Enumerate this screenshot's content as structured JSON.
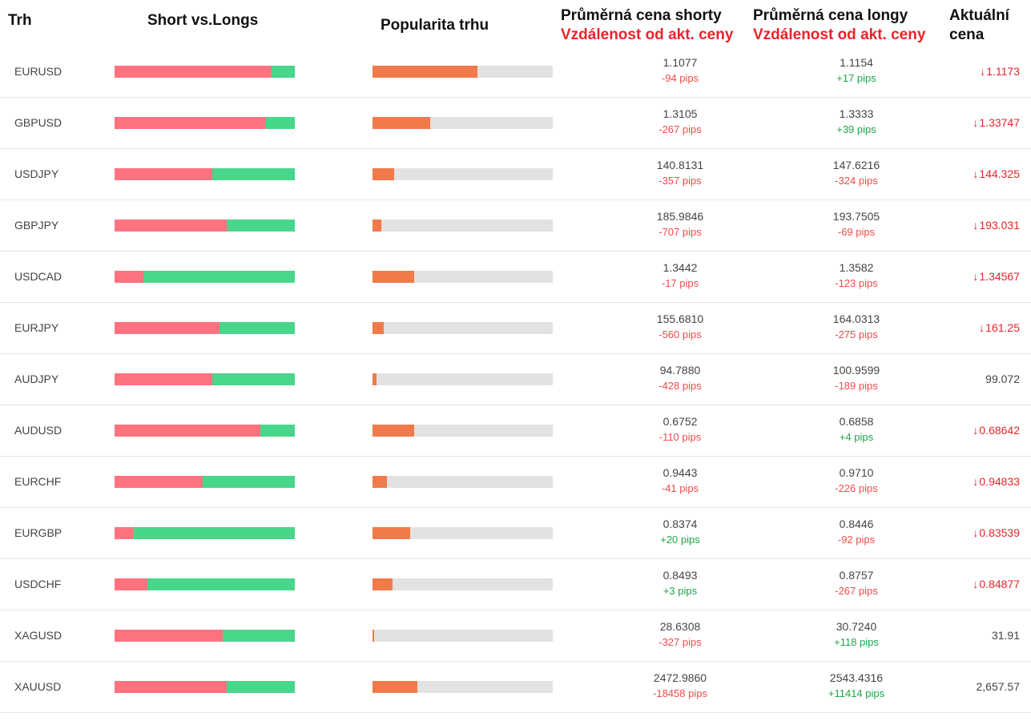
{
  "headers": {
    "market": "Trh",
    "short_vs_longs": "Short vs.Longs",
    "popularity": "Popularita trhu",
    "avg_short": "Průměrná cena shorty",
    "avg_short_sub": "Vzdálenost od akt. ceny",
    "avg_long": "Průměrná cena longy",
    "avg_long_sub": "Vzdálenost od akt. ceny",
    "current": "Aktuální",
    "current_sub": "cena"
  },
  "colors": {
    "short": "#ff727f",
    "long": "#48d68a",
    "popularity": "#f07a4a",
    "track": "#e2e2e2",
    "negative": "#ef4b4b",
    "positive": "#1aa548",
    "down": "#e8242b"
  },
  "rows": [
    {
      "market": "EURUSD",
      "short_pct": 87,
      "popularity_pct": 58,
      "short_price": "1.1077",
      "short_dist": "-94 pips",
      "long_price": "1.1154",
      "long_dist": "+17 pips",
      "current": "1.1173",
      "trend": "down",
      "icon": "arrow-down-icon"
    },
    {
      "market": "GBPUSD",
      "short_pct": 84,
      "popularity_pct": 32,
      "short_price": "1.3105",
      "short_dist": "-267 pips",
      "long_price": "1.3333",
      "long_dist": "+39 pips",
      "current": "1.33747",
      "trend": "down",
      "icon": "arrow-down-icon"
    },
    {
      "market": "USDJPY",
      "short_pct": 54,
      "popularity_pct": 12,
      "short_price": "140.8131",
      "short_dist": "-357 pips",
      "long_price": "147.6216",
      "long_dist": "-324 pips",
      "current": "144.325",
      "trend": "down",
      "icon": "arrow-down-icon"
    },
    {
      "market": "GBPJPY",
      "short_pct": 62,
      "popularity_pct": 5,
      "short_price": "185.9846",
      "short_dist": "-707 pips",
      "long_price": "193.7505",
      "long_dist": "-69 pips",
      "current": "193.031",
      "trend": "down",
      "icon": "arrow-down-icon"
    },
    {
      "market": "USDCAD",
      "short_pct": 16,
      "popularity_pct": 23,
      "short_price": "1.3442",
      "short_dist": "-17 pips",
      "long_price": "1.3582",
      "long_dist": "-123 pips",
      "current": "1.34567",
      "trend": "down",
      "icon": "arrow-down-icon"
    },
    {
      "market": "EURJPY",
      "short_pct": 58,
      "popularity_pct": 6,
      "short_price": "155.6810",
      "short_dist": "-560 pips",
      "long_price": "164.0313",
      "long_dist": "-275 pips",
      "current": "161.25",
      "trend": "down",
      "icon": "arrow-down-icon"
    },
    {
      "market": "AUDJPY",
      "short_pct": 54,
      "popularity_pct": 2,
      "short_price": "94.7880",
      "short_dist": "-428 pips",
      "long_price": "100.9599",
      "long_dist": "-189 pips",
      "current": "99.072",
      "trend": "none",
      "icon": ""
    },
    {
      "market": "AUDUSD",
      "short_pct": 81,
      "popularity_pct": 23,
      "short_price": "0.6752",
      "short_dist": "-110 pips",
      "long_price": "0.6858",
      "long_dist": "+4 pips",
      "current": "0.68642",
      "trend": "down",
      "icon": "arrow-down-icon"
    },
    {
      "market": "EURCHF",
      "short_pct": 49,
      "popularity_pct": 8,
      "short_price": "0.9443",
      "short_dist": "-41 pips",
      "long_price": "0.9710",
      "long_dist": "-226 pips",
      "current": "0.94833",
      "trend": "down",
      "icon": "arrow-down-icon"
    },
    {
      "market": "EURGBP",
      "short_pct": 10,
      "popularity_pct": 21,
      "short_price": "0.8374",
      "short_dist": "+20 pips",
      "long_price": "0.8446",
      "long_dist": "-92 pips",
      "current": "0.83539",
      "trend": "down",
      "icon": "arrow-down-icon"
    },
    {
      "market": "USDCHF",
      "short_pct": 18,
      "popularity_pct": 11,
      "short_price": "0.8493",
      "short_dist": "+3 pips",
      "long_price": "0.8757",
      "long_dist": "-267 pips",
      "current": "0.84877",
      "trend": "down",
      "icon": "arrow-down-icon"
    },
    {
      "market": "XAGUSD",
      "short_pct": 60,
      "popularity_pct": 1,
      "short_price": "28.6308",
      "short_dist": "-327 pips",
      "long_price": "30.7240",
      "long_dist": "+118 pips",
      "current": "31.91",
      "trend": "none",
      "icon": ""
    },
    {
      "market": "XAUUSD",
      "short_pct": 62,
      "popularity_pct": 25,
      "short_price": "2472.9860",
      "short_dist": "-18458 pips",
      "long_price": "2543.4316",
      "long_dist": "+11414 pips",
      "current": "2,657.57",
      "trend": "none",
      "icon": ""
    }
  ]
}
